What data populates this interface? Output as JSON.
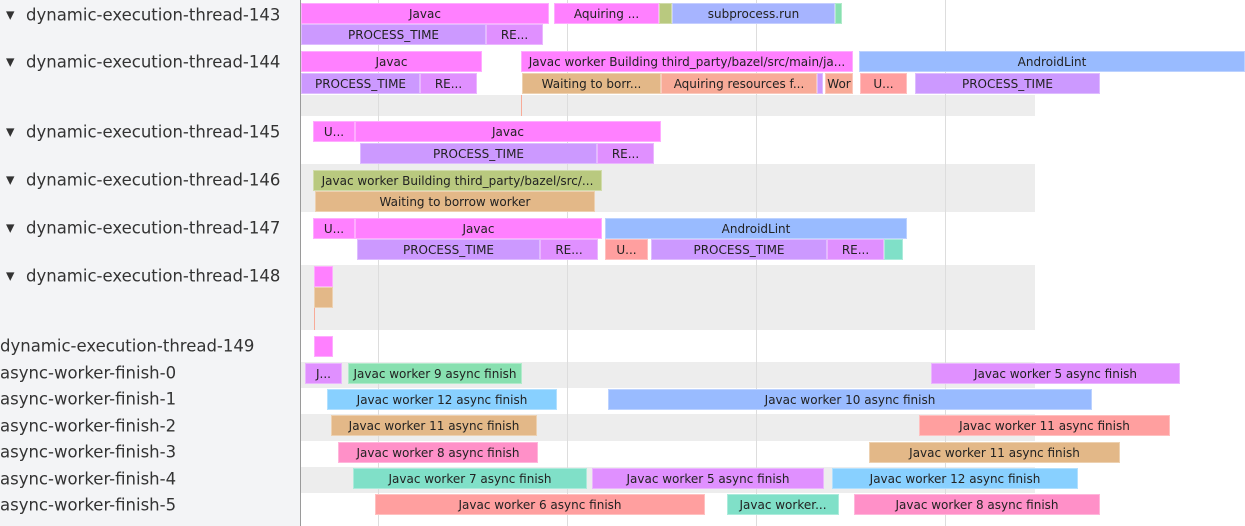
{
  "tracks": {
    "labels": [
      {
        "name": "dynamic-execution-thread-143",
        "expanded": true
      },
      {
        "name": "dynamic-execution-thread-144",
        "expanded": true
      },
      {
        "name": "dynamic-execution-thread-145",
        "expanded": true
      },
      {
        "name": "dynamic-execution-thread-146",
        "expanded": true
      },
      {
        "name": "dynamic-execution-thread-147",
        "expanded": true
      },
      {
        "name": "dynamic-execution-thread-148",
        "expanded": true
      },
      {
        "name": "dynamic-execution-thread-149",
        "expanded": false
      },
      {
        "name": "async-worker-finish-0",
        "expanded": false
      },
      {
        "name": "async-worker-finish-1",
        "expanded": false
      },
      {
        "name": "async-worker-finish-2",
        "expanded": false
      },
      {
        "name": "async-worker-finish-3",
        "expanded": false
      },
      {
        "name": "async-worker-finish-4",
        "expanded": false
      },
      {
        "name": "async-worker-finish-5",
        "expanded": false
      }
    ],
    "expand_icon": "triangle-down-icon"
  },
  "colors": {
    "magenta": "#ff80ff",
    "purple": "#cc99ff",
    "violet": "#e090ff",
    "olive": "#b9c97f",
    "periwinkle": "#a6b4ff",
    "green": "#88e0b0",
    "blue": "#99bbff",
    "tan": "#e3b888",
    "salmon": "#f8ab98",
    "pink": "#ff9f9f",
    "sky": "#88d0ff",
    "rose": "#ff90c8",
    "teal": "#80e0c8"
  },
  "slices": [
    {
      "label": "Javac",
      "color": "magenta"
    },
    {
      "label": "Aquiring ...",
      "color": "magenta"
    },
    {
      "label": "",
      "color": "olive"
    },
    {
      "label": "subprocess.run",
      "color": "periwinkle"
    },
    {
      "label": "",
      "color": "green"
    },
    {
      "label": "PROCESS_TIME",
      "color": "purple"
    },
    {
      "label": "RE...",
      "color": "violet"
    },
    {
      "label": "Javac",
      "color": "magenta"
    },
    {
      "label": "Javac worker Building third_party/bazel/src/main/ja...",
      "color": "magenta"
    },
    {
      "label": "AndroidLint",
      "color": "blue"
    },
    {
      "label": "PROCESS_TIME",
      "color": "purple"
    },
    {
      "label": "RE...",
      "color": "violet"
    },
    {
      "label": "Waiting to borr...",
      "color": "tan"
    },
    {
      "label": "Aquiring resources f...",
      "color": "salmon"
    },
    {
      "label": "",
      "color": "purple"
    },
    {
      "label": "Wor",
      "color": "salmon"
    },
    {
      "label": "U...",
      "color": "pink"
    },
    {
      "label": "PROCESS_TIME",
      "color": "purple"
    },
    {
      "label": "Javac",
      "color": "magenta"
    },
    {
      "label": "U...",
      "color": "magenta"
    },
    {
      "label": "PROCESS_TIME",
      "color": "purple"
    },
    {
      "label": "RE...",
      "color": "violet"
    },
    {
      "label": "Javac worker Building third_party/bazel/src/...",
      "color": "olive"
    },
    {
      "label": "Waiting to borrow worker",
      "color": "tan"
    },
    {
      "label": "Javac",
      "color": "magenta"
    },
    {
      "label": "U...",
      "color": "magenta"
    },
    {
      "label": "AndroidLint",
      "color": "blue"
    },
    {
      "label": "PROCESS_TIME",
      "color": "purple"
    },
    {
      "label": "RE...",
      "color": "violet"
    },
    {
      "label": "U...",
      "color": "pink"
    },
    {
      "label": "PROCESS_TIME",
      "color": "purple"
    },
    {
      "label": "RE...",
      "color": "violet"
    },
    {
      "label": "",
      "color": "teal"
    },
    {
      "label": "",
      "color": "magenta"
    },
    {
      "label": "",
      "color": "tan"
    },
    {
      "label": "",
      "color": "magenta"
    },
    {
      "label": "J...",
      "color": "violet"
    },
    {
      "label": "Javac worker 9 async finish",
      "color": "green"
    },
    {
      "label": "Javac worker 5 async finish",
      "color": "violet"
    },
    {
      "label": "Javac worker 12 async finish",
      "color": "sky"
    },
    {
      "label": "Javac worker 10 async finish",
      "color": "blue"
    },
    {
      "label": "Javac worker 11 async finish",
      "color": "tan"
    },
    {
      "label": "Javac worker 11 async finish",
      "color": "pink"
    },
    {
      "label": "Javac worker 8 async finish",
      "color": "rose"
    },
    {
      "label": "Javac worker 11 async finish",
      "color": "tan"
    },
    {
      "label": "Javac worker 7 async finish",
      "color": "teal"
    },
    {
      "label": "Javac worker 5 async finish",
      "color": "violet"
    },
    {
      "label": "Javac worker 12 async finish",
      "color": "sky"
    },
    {
      "label": "Javac worker 6 async finish",
      "color": "pink"
    },
    {
      "label": "Javac worker...",
      "color": "teal"
    },
    {
      "label": "Javac worker 8 async finish",
      "color": "rose"
    }
  ]
}
